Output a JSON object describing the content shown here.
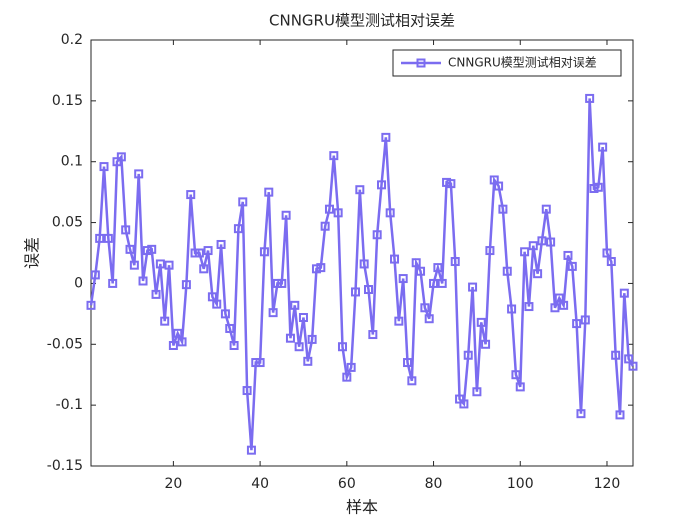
{
  "chart_data": {
    "type": "line",
    "title": "CNNGRU模型测试相对误差",
    "xlabel": "样本",
    "ylabel": "误差",
    "x": [
      1,
      2,
      3,
      4,
      5,
      6,
      7,
      8,
      9,
      10,
      11,
      12,
      13,
      14,
      15,
      16,
      17,
      18,
      19,
      20,
      21,
      22,
      23,
      24,
      25,
      26,
      27,
      28,
      29,
      30,
      31,
      32,
      33,
      34,
      35,
      36,
      37,
      38,
      39,
      40,
      41,
      42,
      43,
      44,
      45,
      46,
      47,
      48,
      49,
      50,
      51,
      52,
      53,
      54,
      55,
      56,
      57,
      58,
      59,
      60,
      61,
      62,
      63,
      64,
      65,
      66,
      67,
      68,
      69,
      70,
      71,
      72,
      73,
      74,
      75,
      76,
      77,
      78,
      79,
      80,
      81,
      82,
      83,
      84,
      85,
      86,
      87,
      88,
      89,
      90,
      91,
      92,
      93,
      94,
      95,
      96,
      97,
      98,
      99,
      100,
      101,
      102,
      103,
      104,
      105,
      106,
      107,
      108,
      109,
      110,
      111,
      112,
      113,
      114,
      115,
      116,
      117,
      118,
      119,
      120,
      121,
      122,
      123,
      124,
      125,
      126
    ],
    "series": [
      {
        "name": "CNNGRU模型测试相对误差",
        "color": "#7b6cf0",
        "values": [
          -0.018,
          0.007,
          0.037,
          0.096,
          0.037,
          0.0,
          0.1,
          0.104,
          0.044,
          0.028,
          0.015,
          0.09,
          0.002,
          0.027,
          0.028,
          -0.009,
          0.016,
          -0.031,
          0.015,
          -0.051,
          -0.041,
          -0.048,
          -0.001,
          0.073,
          0.025,
          0.025,
          0.012,
          0.027,
          -0.011,
          -0.017,
          0.032,
          -0.025,
          -0.037,
          -0.051,
          0.045,
          0.067,
          -0.088,
          -0.137,
          -0.065,
          -0.065,
          0.026,
          0.075,
          -0.024,
          0.0,
          0.0,
          0.056,
          -0.045,
          -0.018,
          -0.052,
          -0.028,
          -0.064,
          -0.046,
          0.012,
          0.013,
          0.047,
          0.061,
          0.105,
          0.058,
          -0.052,
          -0.077,
          -0.069,
          -0.007,
          0.077,
          0.016,
          -0.005,
          -0.042,
          0.04,
          0.081,
          0.12,
          0.058,
          0.02,
          -0.031,
          0.004,
          -0.065,
          -0.08,
          0.017,
          0.01,
          -0.02,
          -0.029,
          0.0,
          0.013,
          0.0,
          0.083,
          0.082,
          0.018,
          -0.095,
          -0.099,
          -0.059,
          -0.003,
          -0.089,
          -0.032,
          -0.05,
          0.027,
          0.085,
          0.08,
          0.061,
          0.01,
          -0.021,
          -0.075,
          -0.085,
          0.026,
          -0.019,
          0.031,
          0.008,
          0.035,
          0.061,
          0.034,
          -0.02,
          -0.012,
          -0.018,
          0.023,
          0.014,
          -0.033,
          -0.107,
          -0.03,
          0.152,
          0.078,
          0.079,
          0.112,
          0.025,
          0.018,
          -0.059,
          -0.108,
          -0.008,
          -0.062,
          -0.068
        ]
      }
    ],
    "xlim": [
      1,
      126
    ],
    "xticks": [
      20,
      40,
      60,
      80,
      100,
      120
    ],
    "ylim": [
      -0.15,
      0.2
    ],
    "yticks": [
      -0.15,
      -0.1,
      -0.05,
      0,
      0.05,
      0.1,
      0.15,
      0.2
    ],
    "legend": "upper right"
  }
}
